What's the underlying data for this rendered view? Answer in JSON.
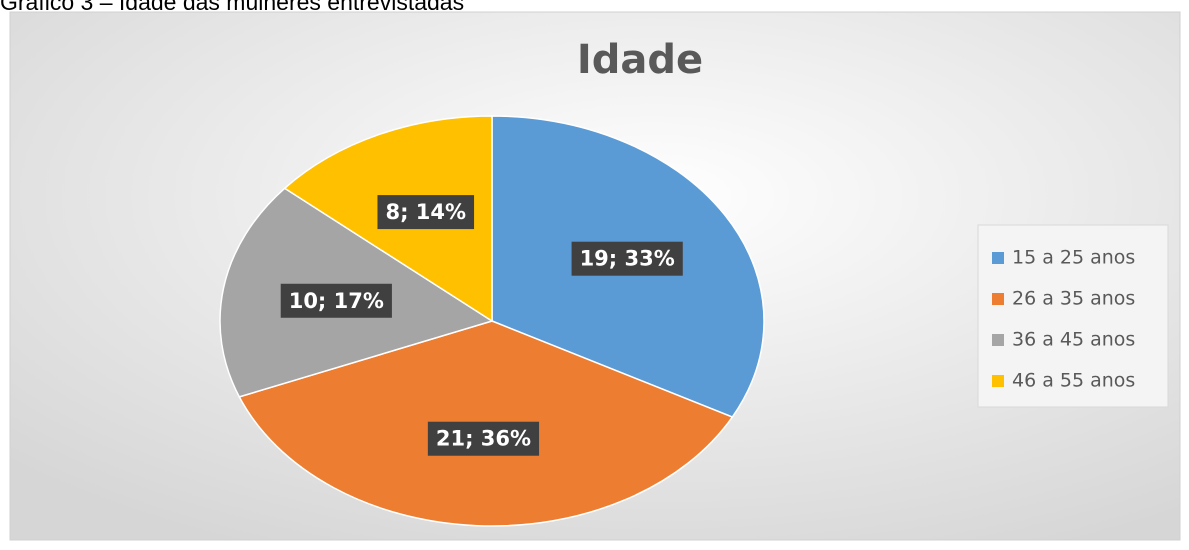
{
  "caption": "Gráfico 3 – Idade das mulheres entrevistadas",
  "chart_data": {
    "type": "pie",
    "title": "Idade",
    "categories": [
      "15 a 25 anos",
      "26 a 35 anos",
      "36 a 45 anos",
      "46 a 55 anos"
    ],
    "values": [
      19,
      21,
      10,
      8
    ],
    "value_labels": [
      "19; 33%",
      "21; 36%",
      "10; 17%",
      "8; 14%"
    ],
    "colors": [
      "#5b9bd5",
      "#ed7d31",
      "#a5a5a5",
      "#ffc000"
    ],
    "legend": "right"
  }
}
